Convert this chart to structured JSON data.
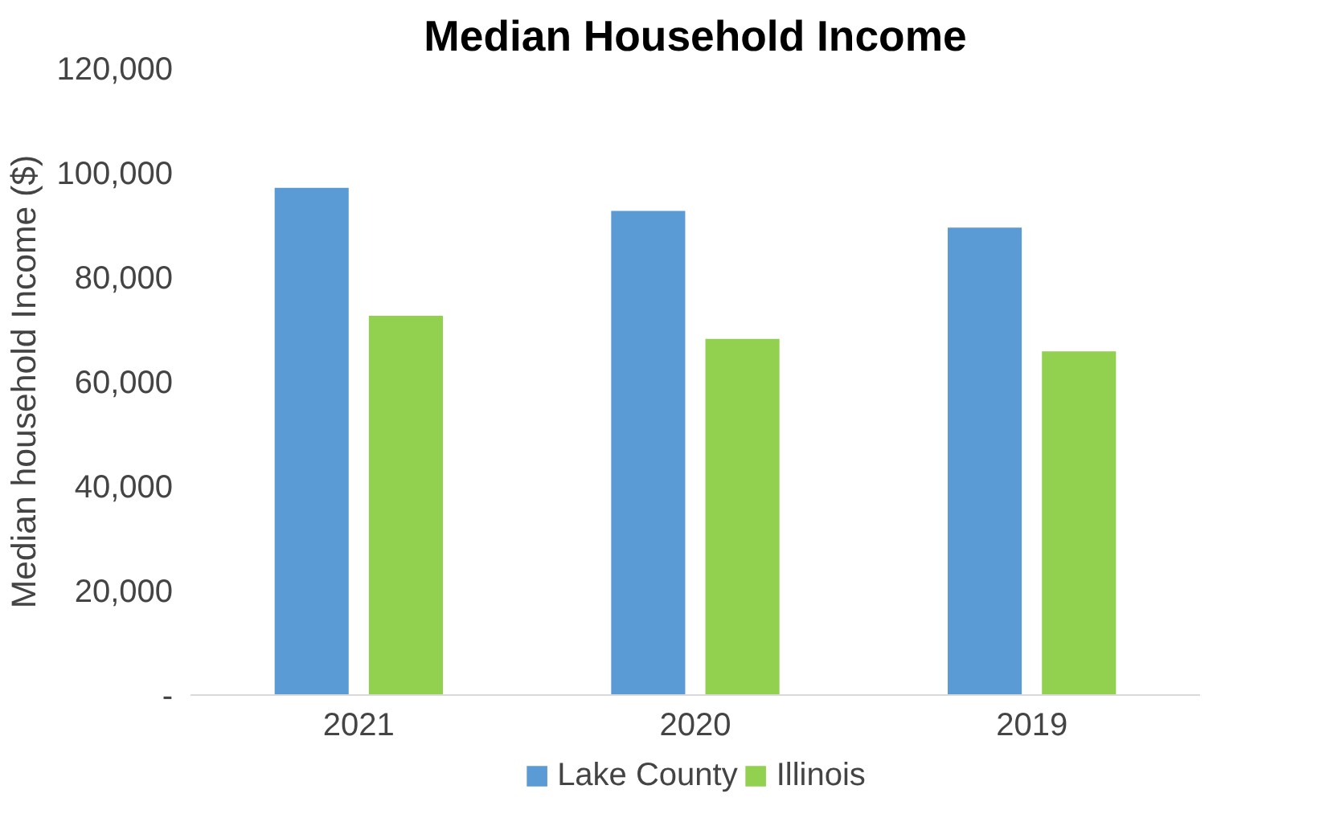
{
  "chart_data": {
    "type": "bar",
    "title": "Median Household Income",
    "ylabel": "Median household Income ($)",
    "categories": [
      "2021",
      "2020",
      "2019"
    ],
    "series": [
      {
        "name": "Lake County",
        "color": "#5b9bd5",
        "values": [
          97100,
          92700,
          89500
        ]
      },
      {
        "name": "Illinois",
        "color": "#92d050",
        "values": [
          72600,
          68200,
          65800
        ]
      }
    ],
    "ylim": [
      0,
      120000
    ],
    "yticks": [
      {
        "value": 0,
        "label": "-"
      },
      {
        "value": 20000,
        "label": "20,000"
      },
      {
        "value": 40000,
        "label": "40,000"
      },
      {
        "value": 60000,
        "label": "60,000"
      },
      {
        "value": 80000,
        "label": "80,000"
      },
      {
        "value": 100000,
        "label": "100,000"
      },
      {
        "value": 120000,
        "label": "120,000"
      }
    ],
    "grid": false,
    "legend": "bottom"
  }
}
